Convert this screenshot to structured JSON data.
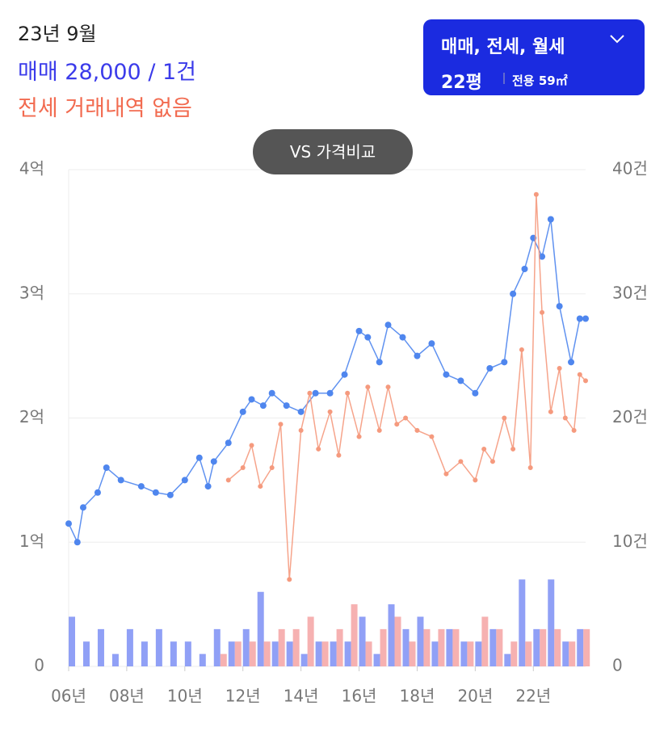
{
  "header": {
    "date": "23년 9월",
    "sale": "매매 28,000 / 1건",
    "jeonse": "전세 거래내역 없음"
  },
  "controls": {
    "filter": "매매, 전세, 월세",
    "pyeong": "22평",
    "area": "전용 59㎡",
    "compare": "VS 가격비교"
  },
  "chart_data": {
    "type": "line",
    "xlim": [
      2006,
      2023.8
    ],
    "xticks": [
      {
        "value": 2006,
        "label": "06년"
      },
      {
        "value": 2008,
        "label": "08년"
      },
      {
        "value": 2010,
        "label": "10년"
      },
      {
        "value": 2012,
        "label": "12년"
      },
      {
        "value": 2014,
        "label": "14년"
      },
      {
        "value": 2016,
        "label": "16년"
      },
      {
        "value": 2018,
        "label": "18년"
      },
      {
        "value": 2020,
        "label": "20년"
      },
      {
        "value": 2022,
        "label": "22년"
      }
    ],
    "ylim": [
      0,
      4
    ],
    "yticks": [
      0,
      {
        "value": 1,
        "label": "1억"
      },
      {
        "value": 2,
        "label": "2억"
      },
      {
        "value": 3,
        "label": "3억"
      },
      {
        "value": 4,
        "label": "4억"
      }
    ],
    "y2lim": [
      0,
      40
    ],
    "y2ticks": [
      0,
      {
        "value": 10,
        "label": "10건"
      },
      {
        "value": 20,
        "label": "20건"
      },
      {
        "value": 30,
        "label": "30건"
      },
      {
        "value": 40,
        "label": "40건"
      }
    ],
    "grid": true,
    "series": [
      {
        "name": "매매",
        "color": "#4f86ee",
        "x": [
          2006.0,
          2006.3,
          2006.5,
          2007.0,
          2007.3,
          2007.8,
          2008.5,
          2009.0,
          2009.5,
          2010.0,
          2010.5,
          2010.8,
          2011.0,
          2011.5,
          2012.0,
          2012.3,
          2012.7,
          2013.0,
          2013.5,
          2014.0,
          2014.5,
          2015.0,
          2015.5,
          2016.0,
          2016.3,
          2016.7,
          2017.0,
          2017.5,
          2018.0,
          2018.5,
          2019.0,
          2019.5,
          2020.0,
          2020.5,
          2021.0,
          2021.3,
          2021.7,
          2022.0,
          2022.3,
          2022.6,
          2022.9,
          2023.3,
          2023.6,
          2023.8
        ],
        "values": [
          1.15,
          1.0,
          1.28,
          1.4,
          1.6,
          1.5,
          1.45,
          1.4,
          1.38,
          1.5,
          1.68,
          1.45,
          1.65,
          1.8,
          2.05,
          2.15,
          2.1,
          2.2,
          2.1,
          2.05,
          2.2,
          2.2,
          2.35,
          2.7,
          2.65,
          2.45,
          2.75,
          2.65,
          2.5,
          2.6,
          2.35,
          2.3,
          2.2,
          2.4,
          2.45,
          3.0,
          3.2,
          3.45,
          3.3,
          3.6,
          2.9,
          2.45,
          2.8,
          2.8
        ]
      },
      {
        "name": "전세",
        "color": "#f59a7e",
        "x": [
          2011.5,
          2012.0,
          2012.3,
          2012.6,
          2013.0,
          2013.3,
          2013.6,
          2014.0,
          2014.3,
          2014.6,
          2015.0,
          2015.3,
          2015.6,
          2016.0,
          2016.3,
          2016.7,
          2017.0,
          2017.3,
          2017.6,
          2018.0,
          2018.5,
          2019.0,
          2019.5,
          2020.0,
          2020.3,
          2020.6,
          2021.0,
          2021.3,
          2021.6,
          2021.9,
          2022.1,
          2022.3,
          2022.6,
          2022.9,
          2023.1,
          2023.4,
          2023.6,
          2023.8
        ],
        "values": [
          1.5,
          1.6,
          1.78,
          1.45,
          1.6,
          1.95,
          0.7,
          1.9,
          2.2,
          1.75,
          2.05,
          1.7,
          2.2,
          1.85,
          2.25,
          1.9,
          2.25,
          1.95,
          2.0,
          1.9,
          1.85,
          1.55,
          1.65,
          1.5,
          1.75,
          1.65,
          2.0,
          1.75,
          2.55,
          1.6,
          3.8,
          2.85,
          2.05,
          2.4,
          2.0,
          1.9,
          2.35,
          2.3
        ]
      },
      {
        "name": "매매 거래량",
        "color": "#7d8ff5",
        "axis": "y2",
        "type": "bar",
        "x": [
          2006,
          2006.5,
          2007,
          2007.5,
          2008,
          2008.5,
          2009,
          2009.5,
          2010,
          2010.5,
          2011,
          2011.5,
          2012,
          2012.5,
          2013,
          2013.5,
          2014,
          2014.5,
          2015,
          2015.5,
          2016,
          2016.5,
          2017,
          2017.5,
          2018,
          2018.5,
          2019,
          2019.5,
          2020,
          2020.5,
          2021,
          2021.5,
          2022,
          2022.5,
          2023,
          2023.5
        ],
        "values": [
          4,
          2,
          3,
          1,
          3,
          2,
          3,
          2,
          2,
          1,
          3,
          2,
          3,
          6,
          2,
          2,
          1,
          2,
          2,
          2,
          4,
          1,
          5,
          3,
          4,
          2,
          3,
          2,
          2,
          3,
          1,
          7,
          3,
          7,
          2,
          3
        ]
      },
      {
        "name": "전세 거래량",
        "color": "#f4a3a3",
        "axis": "y2",
        "type": "bar",
        "x": [
          2006,
          2006.5,
          2007,
          2007.5,
          2008,
          2008.5,
          2009,
          2009.5,
          2010,
          2010.5,
          2011,
          2011.5,
          2012,
          2012.5,
          2013,
          2013.5,
          2014,
          2014.5,
          2015,
          2015.5,
          2016,
          2016.5,
          2017,
          2017.5,
          2018,
          2018.5,
          2019,
          2019.5,
          2020,
          2020.5,
          2021,
          2021.5,
          2022,
          2022.5,
          2023,
          2023.5
        ],
        "values": [
          0,
          0,
          0,
          0,
          0,
          0,
          0,
          0,
          0,
          0,
          1,
          2,
          2,
          2,
          3,
          3,
          4,
          2,
          3,
          5,
          2,
          3,
          4,
          2,
          3,
          3,
          3,
          2,
          4,
          3,
          2,
          2,
          3,
          3,
          2,
          3
        ]
      }
    ]
  }
}
